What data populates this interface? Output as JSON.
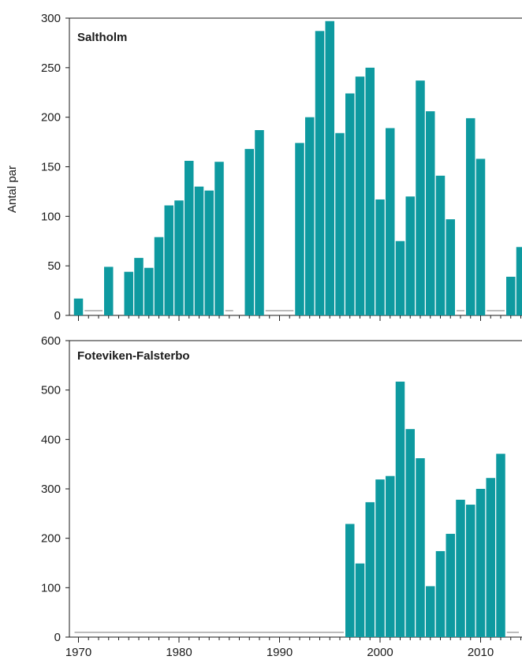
{
  "chart_data": [
    {
      "type": "bar",
      "title": "Saltholm",
      "ylabel": "Antal par",
      "xlabel": "",
      "ylim": [
        0,
        300
      ],
      "yticks": [
        0,
        50,
        100,
        150,
        200,
        250,
        300
      ],
      "x_range": [
        1970,
        2014
      ],
      "colors": {
        "bar": "#0e9aa0",
        "gap": "#a6a6a6",
        "axis": "#1a1a1a"
      },
      "x": [
        1970,
        1973,
        1975,
        1976,
        1977,
        1978,
        1979,
        1980,
        1981,
        1982,
        1983,
        1984,
        1987,
        1988,
        1992,
        1993,
        1994,
        1995,
        1996,
        1997,
        1998,
        1999,
        2000,
        2001,
        2002,
        2003,
        2004,
        2005,
        2006,
        2007,
        2009,
        2010,
        2013,
        2014
      ],
      "values": [
        17,
        49,
        44,
        58,
        48,
        79,
        111,
        116,
        156,
        130,
        126,
        155,
        168,
        187,
        174,
        200,
        287,
        297,
        184,
        224,
        241,
        250,
        117,
        189,
        75,
        120,
        237,
        206,
        141,
        97,
        199,
        158,
        39,
        69
      ],
      "missing_years": [
        [
          1971,
          1972
        ],
        [
          1985,
          1985
        ],
        [
          1989,
          1991
        ],
        [
          2008,
          2008
        ],
        [
          2011,
          2012
        ]
      ]
    },
    {
      "type": "bar",
      "title": "Foteviken-Falsterbo",
      "ylabel": "",
      "xlabel": "",
      "ylim": [
        0,
        600
      ],
      "yticks": [
        0,
        100,
        200,
        300,
        400,
        500,
        600
      ],
      "x_range": [
        1970,
        2014
      ],
      "xticks": [
        1970,
        1980,
        1990,
        2000,
        2010
      ],
      "colors": {
        "bar": "#0e9aa0",
        "gap": "#a6a6a6",
        "axis": "#1a1a1a"
      },
      "x": [
        1997,
        1998,
        1999,
        2000,
        2001,
        2002,
        2003,
        2004,
        2005,
        2006,
        2007,
        2008,
        2009,
        2010,
        2011,
        2012
      ],
      "values": [
        229,
        149,
        273,
        319,
        326,
        517,
        421,
        362,
        103,
        174,
        209,
        278,
        268,
        300,
        322,
        371
      ],
      "missing_years": [
        [
          1970,
          1996
        ],
        [
          2013,
          2014
        ]
      ]
    }
  ]
}
